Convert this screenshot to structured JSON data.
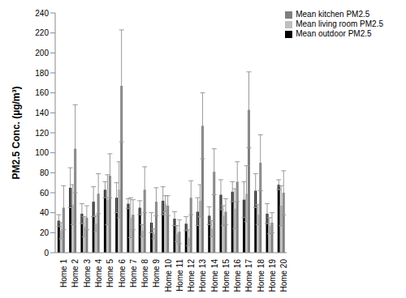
{
  "chart_data": {
    "type": "bar",
    "y_label": "PM2.5 Conc. (µg/m³)",
    "categories": [
      "Home 1",
      "Home 2",
      "Home 3",
      "Home 4",
      "Home 5",
      "Home 6",
      "Home 7",
      "Home 8",
      "Home 9",
      "Home 10",
      "Home 11",
      "Home 12",
      "Home 13",
      "Home 14",
      "Home 15",
      "Home 16",
      "Home 17",
      "Home 18",
      "Home 19",
      "Home 20"
    ],
    "series": [
      {
        "name": "Mean outdoor PM2.5",
        "color": "#000000",
        "values": [
          32,
          65,
          39,
          51,
          63,
          55,
          49,
          45,
          30,
          52,
          34,
          29,
          41,
          37,
          58,
          61,
          53,
          62,
          39,
          68
        ],
        "errors": [
          6,
          20,
          10,
          15,
          8,
          15,
          5,
          7,
          10,
          14,
          7,
          7,
          14,
          9,
          15,
          10,
          18,
          17,
          10,
          5
        ]
      },
      {
        "name": "Mean living room PM2.5",
        "color": "#bfbfbf",
        "values": [
          22,
          48,
          26,
          29,
          53,
          63,
          35,
          22,
          19,
          49,
          19,
          15,
          52,
          24,
          37,
          44,
          59,
          38,
          27,
          47
        ],
        "errors": [
          8,
          20,
          10,
          8,
          25,
          28,
          20,
          6,
          5,
          8,
          8,
          8,
          16,
          8,
          10,
          20,
          28,
          10,
          8,
          20
        ]
      },
      {
        "name": "Mean kitchen PM2.5",
        "color": "#7f7f7f",
        "values": [
          45,
          104,
          35,
          59,
          77,
          167,
          38,
          63,
          51,
          47,
          21,
          55,
          127,
          81,
          41,
          71,
          143,
          90,
          30,
          60
        ],
        "errors": [
          22,
          44,
          12,
          20,
          22,
          56,
          15,
          23,
          14,
          10,
          12,
          17,
          33,
          23,
          13,
          20,
          38,
          28,
          10,
          22
        ]
      }
    ],
    "ylim": [
      0,
      240
    ],
    "yticks": [
      0,
      20,
      40,
      60,
      80,
      100,
      120,
      140,
      160,
      180,
      200,
      220,
      240
    ],
    "grid": false,
    "legend": "top-right"
  }
}
